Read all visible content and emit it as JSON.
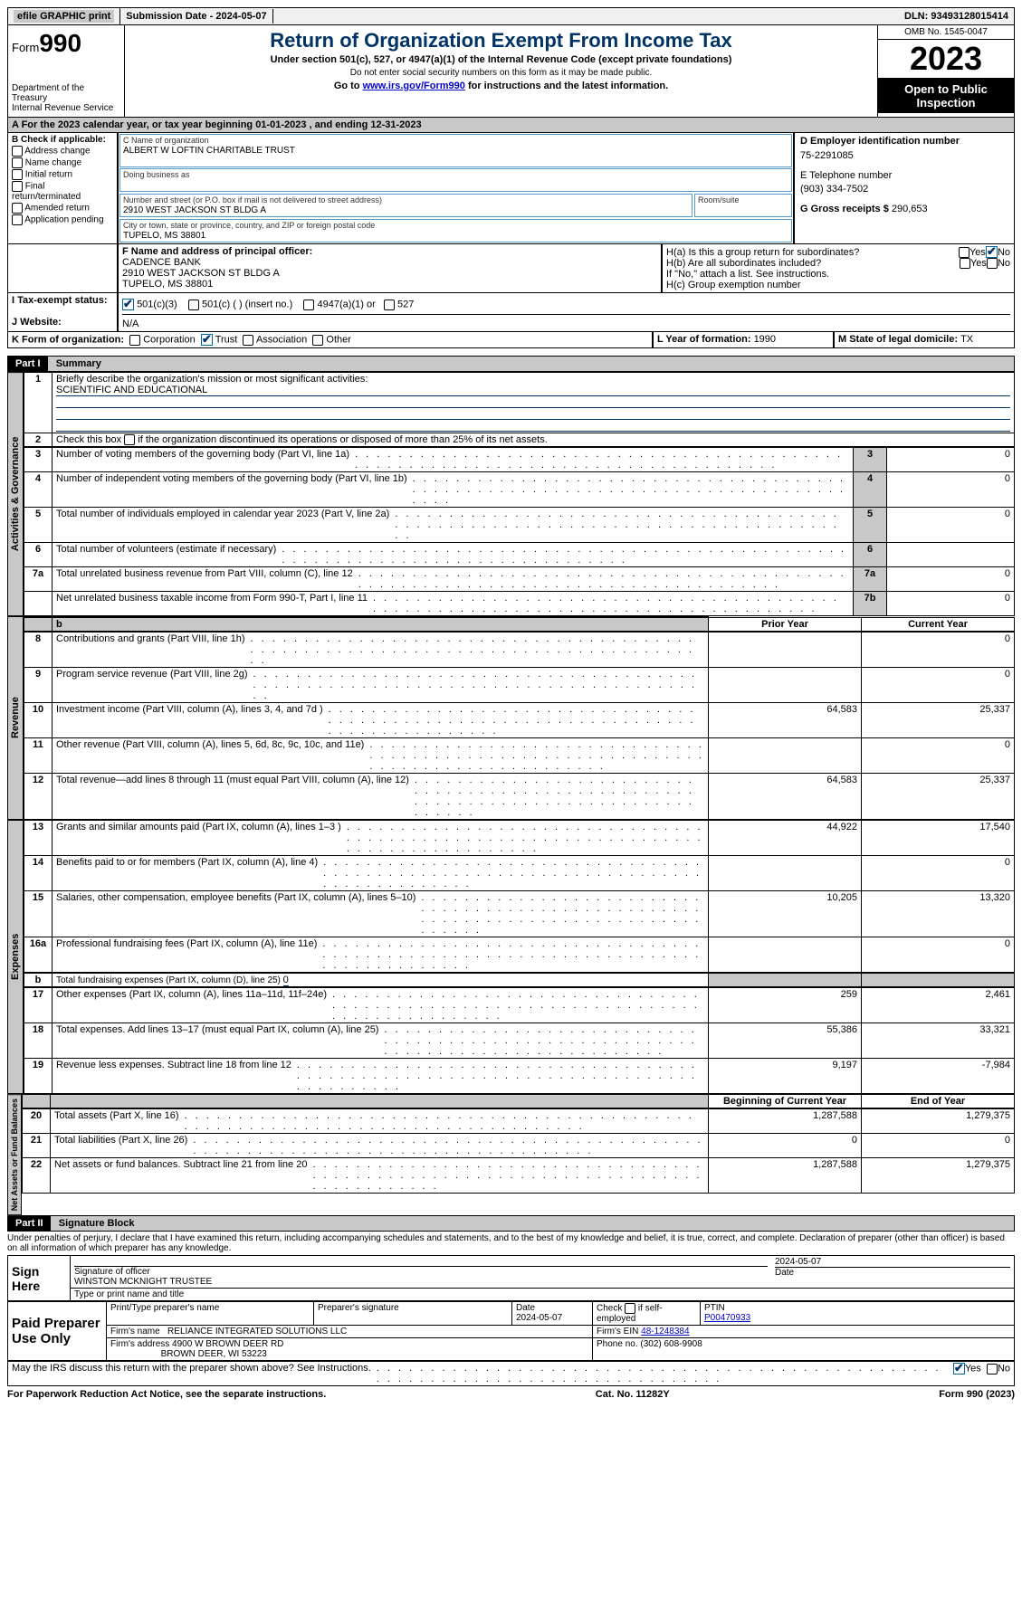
{
  "topbar": {
    "efile_btn": "efile GRAPHIC print",
    "sub_label": "Submission Date - ",
    "sub_date": "2024-05-07",
    "dln_label": "DLN: ",
    "dln": "93493128015414"
  },
  "header": {
    "form_word": "Form",
    "form_no": "990",
    "dept1": "Department of the Treasury",
    "dept2": "Internal Revenue Service",
    "title": "Return of Organization Exempt From Income Tax",
    "sub1": "Under section 501(c), 527, or 4947(a)(1) of the Internal Revenue Code (except private foundations)",
    "sub2": "Do not enter social security numbers on this form as it may be made public.",
    "sub3a": "Go to ",
    "sub3_link": "www.irs.gov/Form990",
    "sub3b": " for instructions and the latest information.",
    "omb": "OMB No. 1545-0047",
    "year": "2023",
    "opi": "Open to Public Inspection"
  },
  "lineA": "A For the 2023 calendar year, or tax year beginning 01-01-2023   , and ending 12-31-2023",
  "B": {
    "label": "B Check if applicable:",
    "items": [
      "Address change",
      "Name change",
      "Initial return",
      "Final return/terminated",
      "Amended return",
      "Application pending"
    ]
  },
  "C": {
    "name_lbl": "C Name of organization",
    "name": "ALBERT W LOFTIN CHARITABLE TRUST",
    "dba_lbl": "Doing business as",
    "addr_lbl": "Number and street (or P.O. box if mail is not delivered to street address)",
    "room_lbl": "Room/suite",
    "addr": "2910 WEST JACKSON ST BLDG A",
    "city_lbl": "City or town, state or province, country, and ZIP or foreign postal code",
    "city": "TUPELO, MS  38801"
  },
  "D": {
    "lbl": "D Employer identification number",
    "val": "75-2291085"
  },
  "E": {
    "lbl": "E Telephone number",
    "val": "(903) 334-7502"
  },
  "G": {
    "lbl": "G Gross receipts $ ",
    "val": "290,653"
  },
  "F": {
    "lbl": "F  Name and address of principal officer:",
    "l1": "CADENCE BANK",
    "l2": "2910 WEST JACKSON ST BLDG A",
    "l3": "TUPELO, MS  38801"
  },
  "H": {
    "a": "H(a)  Is this a group return for subordinates?",
    "b": "H(b)  Are all subordinates included?",
    "b_note": "If \"No,\" attach a list. See instructions.",
    "c": "H(c)  Group exemption number"
  },
  "I": {
    "lbl": "I   Tax-exempt status:",
    "o1": "501(c)(3)",
    "o2": "501(c) (  ) (insert no.)",
    "o3": "4947(a)(1) or",
    "o4": "527"
  },
  "J": {
    "lbl": "J   Website:",
    "val": "N/A"
  },
  "K": {
    "lbl": "K Form of organization:",
    "o": [
      "Corporation",
      "Trust",
      "Association",
      "Other"
    ]
  },
  "L": {
    "lbl": "L Year of formation: ",
    "val": "1990"
  },
  "M": {
    "lbl": "M State of legal domicile: ",
    "val": "TX"
  },
  "part1": {
    "tag": "Part I",
    "title": "Summary"
  },
  "sect_labels": {
    "ag": "Activities & Governance",
    "rev": "Revenue",
    "exp": "Expenses",
    "na": "Net Assets or Fund Balances"
  },
  "l1": {
    "n": "1",
    "t": "Briefly describe the organization's mission or most significant activities:",
    "v": "SCIENTIFIC AND EDUCATIONAL"
  },
  "l2": {
    "n": "2",
    "t": "Check this box ",
    "t2": " if the organization discontinued its operations or disposed of more than 25% of its net assets."
  },
  "gov": [
    {
      "n": "3",
      "t": "Number of voting members of the governing body (Part VI, line 1a)",
      "b": "3",
      "v": "0"
    },
    {
      "n": "4",
      "t": "Number of independent voting members of the governing body (Part VI, line 1b)",
      "b": "4",
      "v": "0"
    },
    {
      "n": "5",
      "t": "Total number of individuals employed in calendar year 2023 (Part V, line 2a)",
      "b": "5",
      "v": "0"
    },
    {
      "n": "6",
      "t": "Total number of volunteers (estimate if necessary)",
      "b": "6",
      "v": ""
    },
    {
      "n": "7a",
      "t": "Total unrelated business revenue from Part VIII, column (C), line 12",
      "b": "7a",
      "v": "0"
    },
    {
      "n": "",
      "t": "Net unrelated business taxable income from Form 990-T, Part I, line 11",
      "b": "7b",
      "v": "0"
    }
  ],
  "cols": {
    "b": "b",
    "py": "Prior Year",
    "cy": "Current Year"
  },
  "rev": [
    {
      "n": "8",
      "t": "Contributions and grants (Part VIII, line 1h)",
      "p": "",
      "c": "0"
    },
    {
      "n": "9",
      "t": "Program service revenue (Part VIII, line 2g)",
      "p": "",
      "c": "0"
    },
    {
      "n": "10",
      "t": "Investment income (Part VIII, column (A), lines 3, 4, and 7d )",
      "p": "64,583",
      "c": "25,337"
    },
    {
      "n": "11",
      "t": "Other revenue (Part VIII, column (A), lines 5, 6d, 8c, 9c, 10c, and 11e)",
      "p": "",
      "c": "0"
    },
    {
      "n": "12",
      "t": "Total revenue—add lines 8 through 11 (must equal Part VIII, column (A), line 12)",
      "p": "64,583",
      "c": "25,337"
    }
  ],
  "exp": [
    {
      "n": "13",
      "t": "Grants and similar amounts paid (Part IX, column (A), lines 1–3 )",
      "p": "44,922",
      "c": "17,540"
    },
    {
      "n": "14",
      "t": "Benefits paid to or for members (Part IX, column (A), line 4)",
      "p": "",
      "c": "0"
    },
    {
      "n": "15",
      "t": "Salaries, other compensation, employee benefits (Part IX, column (A), lines 5–10)",
      "p": "10,205",
      "c": "13,320"
    },
    {
      "n": "16a",
      "t": "Professional fundraising fees (Part IX, column (A), line 11e)",
      "p": "",
      "c": "0"
    }
  ],
  "l16b": {
    "n": "b",
    "t": "Total fundraising expenses (Part IX, column (D), line 25) ",
    "v": "0"
  },
  "exp2": [
    {
      "n": "17",
      "t": "Other expenses (Part IX, column (A), lines 11a–11d, 11f–24e)",
      "p": "259",
      "c": "2,461"
    },
    {
      "n": "18",
      "t": "Total expenses. Add lines 13–17 (must equal Part IX, column (A), line 25)",
      "p": "55,386",
      "c": "33,321"
    },
    {
      "n": "19",
      "t": "Revenue less expenses. Subtract line 18 from line 12",
      "p": "9,197",
      "c": "-7,984"
    }
  ],
  "cols2": {
    "b": "Beginning of Current Year",
    "e": "End of Year"
  },
  "na": [
    {
      "n": "20",
      "t": "Total assets (Part X, line 16)",
      "p": "1,287,588",
      "c": "1,279,375"
    },
    {
      "n": "21",
      "t": "Total liabilities (Part X, line 26)",
      "p": "0",
      "c": "0"
    },
    {
      "n": "22",
      "t": "Net assets or fund balances. Subtract line 21 from line 20",
      "p": "1,287,588",
      "c": "1,279,375"
    }
  ],
  "part2": {
    "tag": "Part II",
    "title": "Signature Block"
  },
  "perjury": "Under penalties of perjury, I declare that I have examined this return, including accompanying schedules and statements, and to the best of my knowledge and belief, it is true, correct, and complete. Declaration of preparer (other than officer) is based on all information of which preparer has any knowledge.",
  "sign": {
    "here": "Sign Here",
    "date": "2024-05-07",
    "sig_lbl": "Signature of officer",
    "sig_name": "WINSTON MCKNIGHT TRUSTEE",
    "type_lbl": "Type or print name and title",
    "date_lbl": "Date"
  },
  "prep": {
    "title": "Paid Preparer Use Only",
    "h1": "Print/Type preparer's name",
    "h2": "Preparer's signature",
    "h3": "Date",
    "h4": "Check",
    "h4b": "if self-employed",
    "h5": "PTIN",
    "date": "2024-05-07",
    "ptin": "P00470933",
    "firm_lbl": "Firm's name",
    "firm": "RELIANCE INTEGRATED SOLUTIONS LLC",
    "ein_lbl": "Firm's EIN ",
    "ein": "48-1248384",
    "addr_lbl": "Firm's address",
    "addr1": "4900 W BROWN DEER RD",
    "addr2": "BROWN DEER, WI  53223",
    "phone_lbl": "Phone no. ",
    "phone": "(302) 608-9908"
  },
  "discuss": "May the IRS discuss this return with the preparer shown above? See Instructions.",
  "footer": {
    "l": "For Paperwork Reduction Act Notice, see the separate instructions.",
    "c": "Cat. No. 11282Y",
    "r": "Form 990 (2023)"
  },
  "yn": {
    "yes": "Yes",
    "no": "No"
  }
}
